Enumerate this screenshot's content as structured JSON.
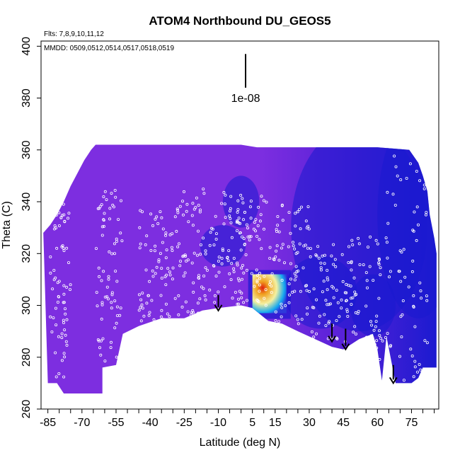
{
  "chart_data": {
    "type": "heatmap",
    "title": "ATOM4 Northbound DU_GEOS5",
    "flights_note": "Flts: 7,8,9,10,11,12",
    "dates_note": "MMDD: 0509,0512,0514,0517,0518,0519",
    "xlabel": "Latitude (deg N)",
    "ylabel": "Theta (C)",
    "xlim": [
      -88,
      87
    ],
    "ylim": [
      260,
      402
    ],
    "x_ticks": [
      -85,
      -70,
      -55,
      -40,
      -25,
      -10,
      5,
      15,
      30,
      45,
      60,
      75
    ],
    "x_tick_labels": [
      "-85",
      "-70",
      "-55",
      "-40",
      "-25",
      "-10",
      "5",
      "15",
      "30",
      "45",
      "60",
      "75"
    ],
    "y_ticks": [
      260,
      280,
      300,
      320,
      340,
      360,
      380,
      400
    ],
    "y_tick_labels": [
      "260",
      "280",
      "300",
      "320",
      "340",
      "360",
      "380",
      "400"
    ],
    "scale_label": "1e-08",
    "scale_bar_theta": [
      384,
      397
    ],
    "scale_bar_lat": 2,
    "colors": {
      "background_field": "#7d2ee0",
      "blue_high": "#1a1ad0",
      "hotspot_outer": "#14a8f0",
      "hotspot_mid": "#f4f0a0",
      "hotspot_core": "#e02010",
      "flight_points": "#ffffff"
    },
    "curtain_top_boundary": [
      [
        -87,
        328
      ],
      [
        -84,
        331
      ],
      [
        -81,
        335
      ],
      [
        -78,
        340
      ],
      [
        -75,
        346
      ],
      [
        -72,
        351
      ],
      [
        -69,
        356
      ],
      [
        -66,
        360
      ],
      [
        -64,
        362
      ],
      [
        -60,
        362
      ],
      [
        -30,
        362
      ],
      [
        0,
        362
      ],
      [
        7,
        361
      ],
      [
        30,
        361
      ],
      [
        60,
        361
      ],
      [
        74,
        360
      ],
      [
        78,
        355
      ],
      [
        80,
        350
      ],
      [
        82,
        344
      ],
      [
        83,
        335
      ],
      [
        85,
        326
      ],
      [
        86,
        320
      ]
    ],
    "curtain_bottom_boundary": [
      [
        -85,
        270
      ],
      [
        -81,
        270
      ],
      [
        -78,
        266
      ],
      [
        -61,
        266
      ],
      [
        -61,
        276
      ],
      [
        -55,
        277
      ],
      [
        -52,
        289
      ],
      [
        -45,
        292
      ],
      [
        -35,
        295
      ],
      [
        -25,
        295
      ],
      [
        -17,
        298
      ],
      [
        -10,
        299
      ],
      [
        0,
        300
      ],
      [
        5,
        299
      ],
      [
        12,
        294
      ],
      [
        18,
        293
      ],
      [
        25,
        290
      ],
      [
        35,
        286
      ],
      [
        40,
        284
      ],
      [
        45,
        283
      ],
      [
        52,
        287
      ],
      [
        58,
        289
      ],
      [
        60,
        283
      ],
      [
        62,
        271
      ],
      [
        64,
        288
      ],
      [
        68,
        270
      ],
      [
        75,
        270
      ],
      [
        78,
        272
      ],
      [
        80,
        276
      ],
      [
        86,
        276
      ]
    ],
    "hotspot": {
      "lat_range": [
        5,
        20
      ],
      "theta_range": [
        297,
        312
      ],
      "core_lat": 9,
      "core_theta": 308,
      "peak_value_scaled": 1.0
    },
    "arrows": [
      {
        "lat": -10,
        "theta_top": 304,
        "theta_tip": 298
      },
      {
        "lat": 40,
        "theta_top": 293,
        "theta_tip": 286
      },
      {
        "lat": 46,
        "theta_top": 291,
        "theta_tip": 283
      },
      {
        "lat": 67,
        "theta_top": 277,
        "theta_tip": 270
      }
    ],
    "flight_tracks": [
      {
        "lat_start": -84,
        "lat_end": -75,
        "theta_bottom": 272,
        "theta_top": 345
      },
      {
        "lat_start": -64,
        "lat_end": -52,
        "theta_bottom": 278,
        "theta_top": 345
      },
      {
        "lat_start": -45,
        "lat_end": -30,
        "theta_bottom": 292,
        "theta_top": 337
      },
      {
        "lat_start": -30,
        "lat_end": -15,
        "theta_bottom": 296,
        "theta_top": 345
      },
      {
        "lat_start": -15,
        "lat_end": 0,
        "theta_bottom": 300,
        "theta_top": 344
      },
      {
        "lat_start": 0,
        "lat_end": 15,
        "theta_bottom": 300,
        "theta_top": 345
      },
      {
        "lat_start": 15,
        "lat_end": 30,
        "theta_bottom": 292,
        "theta_top": 340
      },
      {
        "lat_start": 30,
        "lat_end": 48,
        "theta_bottom": 284,
        "theta_top": 325
      },
      {
        "lat_start": 48,
        "lat_end": 62,
        "theta_bottom": 275,
        "theta_top": 328
      },
      {
        "lat_start": 62,
        "lat_end": 82,
        "theta_bottom": 271,
        "theta_top": 358
      }
    ]
  }
}
